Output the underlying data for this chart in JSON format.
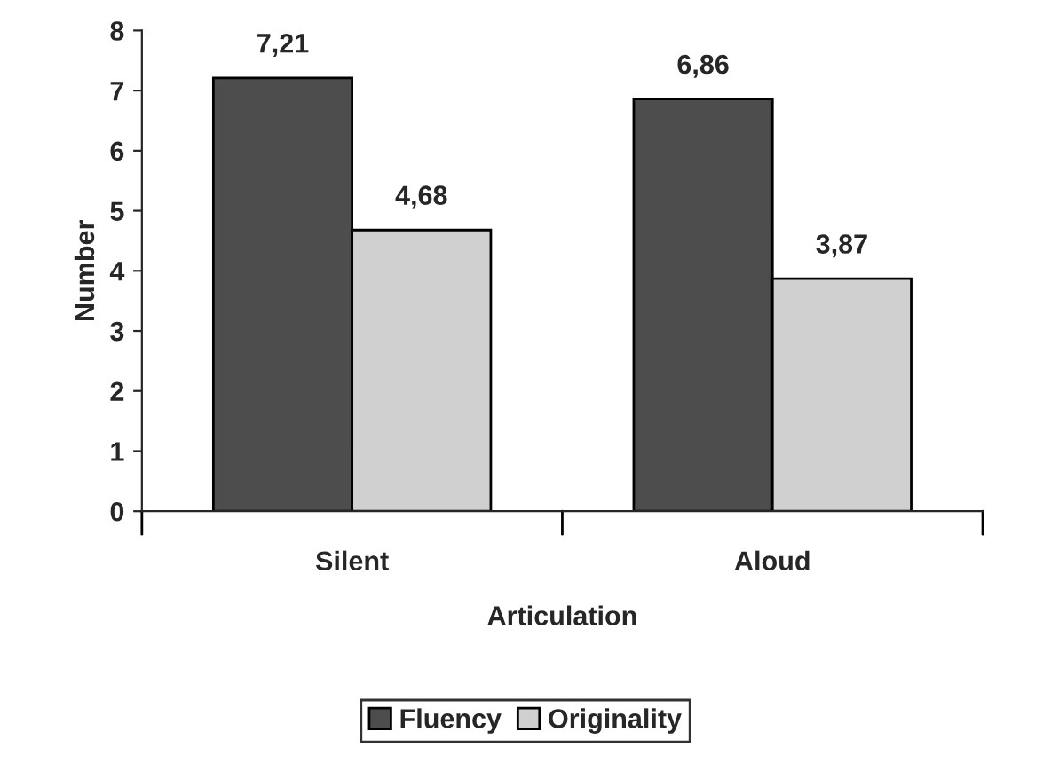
{
  "chart_data": {
    "type": "bar",
    "xlabel": "Articulation",
    "ylabel": "Number",
    "categories": [
      "Silent",
      "Aloud"
    ],
    "series": [
      {
        "name": "Fluency",
        "color": "#4d4d4d",
        "values": [
          7.21,
          6.86
        ],
        "value_labels": [
          "7,21",
          "6,86"
        ]
      },
      {
        "name": "Originality",
        "color": "#d0d0d0",
        "values": [
          4.68,
          3.87
        ],
        "value_labels": [
          "4,68",
          "3,87"
        ]
      }
    ],
    "ylim": [
      0,
      8
    ],
    "yticks": [
      0,
      1,
      2,
      3,
      4,
      5,
      6,
      7,
      8
    ],
    "grid": false,
    "legend": "bottom"
  }
}
